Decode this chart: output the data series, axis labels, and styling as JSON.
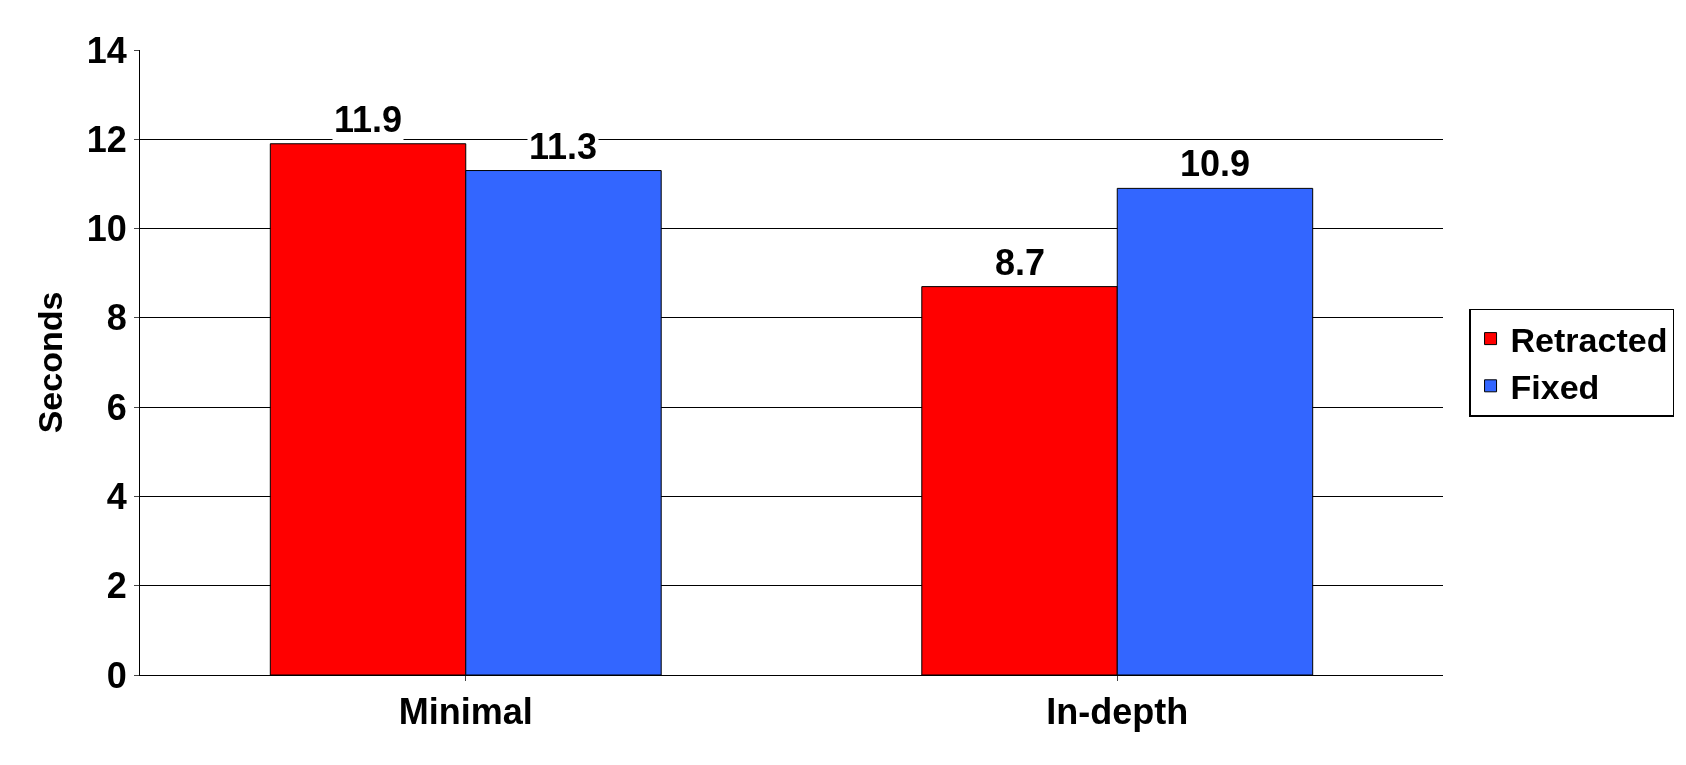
{
  "chart_data": {
    "type": "bar",
    "categories": [
      "Minimal",
      "In-depth"
    ],
    "ylabel": "Seconds",
    "series": [
      {
        "name": "Retracted",
        "color": "#ff0000",
        "values": [
          11.9,
          8.7
        ]
      },
      {
        "name": "Fixed",
        "color": "#3366ff",
        "values": [
          11.3,
          10.9
        ]
      }
    ],
    "ylim": [
      0,
      14
    ],
    "yticks": [
      0,
      2,
      4,
      6,
      8,
      10,
      12,
      14
    ],
    "grid": "y",
    "legend": "right",
    "data_labels": true
  }
}
